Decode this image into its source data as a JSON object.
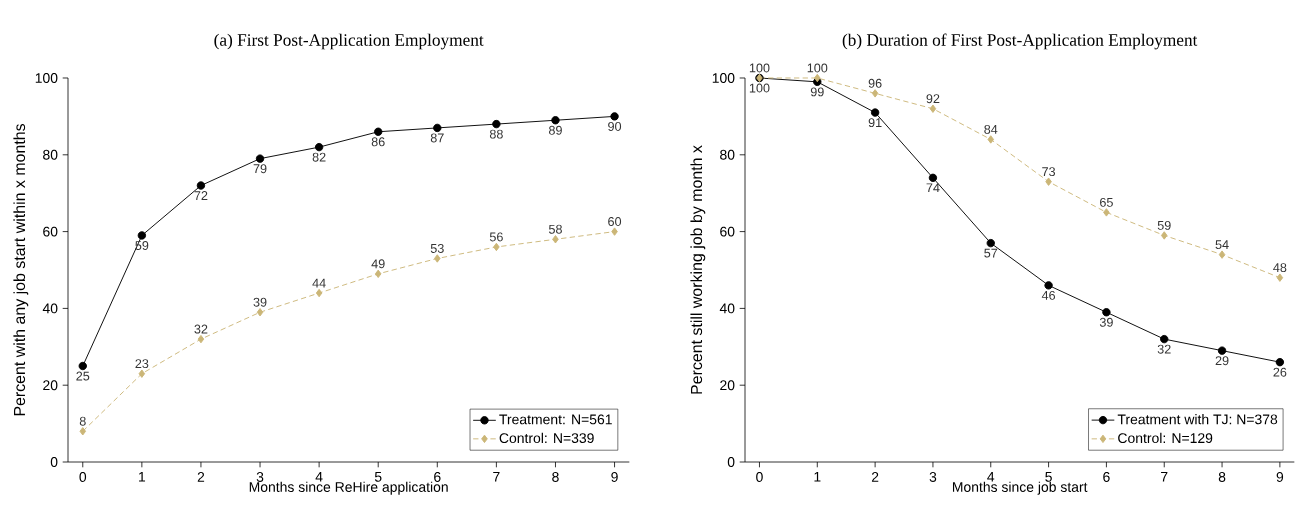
{
  "chart_data": [
    {
      "type": "line",
      "title": "(a) First Post-Application Employment",
      "xlabel": "Months since ReHire application",
      "ylabel": "Percent with any job start within x months",
      "x": [
        0,
        1,
        2,
        3,
        4,
        5,
        6,
        7,
        8,
        9
      ],
      "xlim": [
        -0.25,
        9.25
      ],
      "xticks": [
        0,
        1,
        2,
        3,
        4,
        5,
        6,
        7,
        8,
        9
      ],
      "ylim": [
        0,
        100
      ],
      "yticks": [
        0,
        20,
        40,
        60,
        80,
        100
      ],
      "legend": "bottom right",
      "data_labels": true,
      "series": [
        {
          "name": "Treatment: N=561",
          "color": "#000000",
          "marker": "circle",
          "line_style": "solid",
          "values": [
            25,
            59,
            72,
            79,
            82,
            86,
            87,
            88,
            89,
            90
          ]
        },
        {
          "name": "Control: N=339",
          "color": "#cbb677",
          "marker": "diamond",
          "line_style": "dashed",
          "values": [
            8,
            23,
            32,
            39,
            44,
            49,
            53,
            56,
            58,
            60
          ]
        }
      ]
    },
    {
      "type": "line",
      "title": "(b) Duration of First Post-Application Employment",
      "xlabel": "Months since job start",
      "ylabel": "Percent still working job by month x",
      "x": [
        0,
        1,
        2,
        3,
        4,
        5,
        6,
        7,
        8,
        9
      ],
      "xlim": [
        -0.25,
        9.25
      ],
      "xticks": [
        0,
        1,
        2,
        3,
        4,
        5,
        6,
        7,
        8,
        9
      ],
      "ylim": [
        0,
        100
      ],
      "yticks": [
        0,
        20,
        40,
        60,
        80,
        100
      ],
      "legend": "bottom right",
      "data_labels": true,
      "series": [
        {
          "name": "Treatment with TJ: N=378",
          "color": "#000000",
          "marker": "circle",
          "line_style": "solid",
          "values": [
            100,
            99,
            91,
            74,
            57,
            46,
            39,
            32,
            29,
            26
          ]
        },
        {
          "name": "Control: N=129",
          "color": "#cbb677",
          "marker": "diamond",
          "line_style": "dashed",
          "values": [
            100,
            100,
            96,
            92,
            84,
            73,
            65,
            59,
            54,
            48
          ]
        }
      ]
    }
  ]
}
